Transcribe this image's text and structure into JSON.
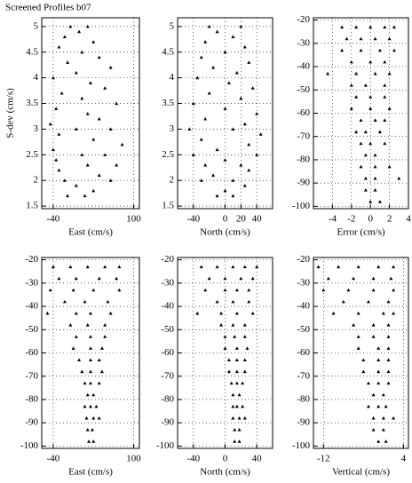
{
  "title": "Screened Profiles b07",
  "chart_data": [
    {
      "type": "scatter",
      "x_label": "East (cm/s)",
      "y_label": "S-dev (cm/s)",
      "color": "#000000",
      "grid": true,
      "xlim": [
        -60,
        110
      ],
      "ylim": [
        1.45,
        5.17
      ],
      "xticks": [
        -40,
        100
      ],
      "yticks": [
        1.5,
        2.0,
        2.5,
        3.0,
        3.5,
        4.0,
        4.5,
        5.0
      ],
      "x": [
        -10,
        20,
        5,
        -20,
        30,
        -30,
        10,
        40,
        -15,
        60,
        0,
        -40,
        25,
        50,
        -25,
        10,
        70,
        -35,
        20,
        40,
        -45,
        0,
        60,
        -30,
        30,
        80,
        -40,
        10,
        50,
        -35,
        20,
        70,
        -30,
        40,
        -20,
        60,
        0,
        30,
        -15,
        15
      ],
      "y": [
        5.0,
        5.0,
        4.9,
        4.8,
        4.7,
        4.6,
        4.5,
        4.4,
        4.3,
        4.2,
        4.1,
        4.0,
        3.9,
        3.8,
        3.7,
        3.6,
        3.5,
        3.4,
        3.3,
        3.2,
        3.1,
        3.0,
        3.0,
        2.9,
        2.8,
        2.7,
        2.6,
        2.5,
        2.5,
        2.4,
        2.3,
        2.3,
        2.2,
        2.1,
        2.0,
        2.0,
        1.9,
        1.8,
        1.7,
        1.7
      ]
    },
    {
      "type": "scatter",
      "x_label": "North (cm/s)",
      "color": "#000000",
      "grid": true,
      "xlim": [
        -60,
        60
      ],
      "ylim": [
        1.45,
        5.17
      ],
      "xticks": [
        -40,
        0,
        20,
        40
      ],
      "yticks": [
        1.5,
        2.0,
        2.5,
        3.0,
        3.5,
        4.0,
        4.5,
        5.0
      ],
      "x": [
        -20,
        20,
        -10,
        10,
        -25,
        25,
        0,
        -30,
        30,
        -15,
        15,
        -35,
        5,
        35,
        -20,
        20,
        -40,
        0,
        40,
        -25,
        25,
        -45,
        10,
        45,
        -30,
        30,
        -10,
        40,
        -40,
        0,
        20,
        -25,
        30,
        -15,
        10,
        -30,
        25,
        0,
        -10,
        10
      ],
      "y": [
        5.0,
        5.0,
        4.9,
        4.8,
        4.7,
        4.6,
        4.5,
        4.4,
        4.3,
        4.2,
        4.1,
        4.0,
        3.9,
        3.8,
        3.7,
        3.6,
        3.5,
        3.4,
        3.3,
        3.2,
        3.1,
        3.0,
        3.0,
        2.9,
        2.8,
        2.7,
        2.6,
        2.5,
        2.5,
        2.4,
        2.3,
        2.3,
        2.2,
        2.1,
        2.0,
        2.0,
        1.9,
        1.8,
        1.7,
        1.7
      ]
    },
    {
      "type": "scatter",
      "x_label": "Error (cm/s)",
      "color": "#000000",
      "grid": true,
      "xlim": [
        -6,
        4
      ],
      "ylim": [
        -101,
        -19
      ],
      "xticks": [
        -4,
        -2,
        0,
        2,
        4
      ],
      "yticks": [
        -100,
        -90,
        -80,
        -70,
        -60,
        -50,
        -40,
        -30,
        -20
      ],
      "x": [
        -3,
        -1.5,
        0,
        1.5,
        2.5,
        -2.5,
        -1,
        0.5,
        2,
        -3,
        -1,
        1,
        2.5,
        -2,
        0,
        1.5,
        -4.5,
        -1.5,
        0.5,
        2,
        -2,
        -0.5,
        1.5,
        -1.5,
        0,
        1.5,
        -2,
        0,
        2,
        -1,
        0.5,
        1.5,
        -1.5,
        -0.5,
        1,
        -1,
        0,
        1.5,
        -0.5,
        0.5,
        -1,
        0.5,
        2,
        -0.5,
        0.5,
        3,
        -0.5,
        0.5,
        0,
        1
      ],
      "y": [
        -23,
        -23,
        -23,
        -23,
        -23,
        -28,
        -28,
        -28,
        -28,
        -33,
        -33,
        -33,
        -33,
        -38,
        -38,
        -38,
        -43,
        -43,
        -43,
        -43,
        -48,
        -48,
        -48,
        -53,
        -53,
        -53,
        -58,
        -58,
        -58,
        -63,
        -63,
        -63,
        -68,
        -68,
        -68,
        -73,
        -73,
        -73,
        -78,
        -78,
        -83,
        -83,
        -83,
        -88,
        -88,
        -88,
        -93,
        -93,
        -98,
        -98
      ]
    },
    {
      "type": "scatter",
      "x_label": "East (cm/s)",
      "color": "#000000",
      "grid": true,
      "xlim": [
        -60,
        110
      ],
      "ylim": [
        -101,
        -19
      ],
      "xticks": [
        -40,
        100
      ],
      "yticks": [
        -100,
        -90,
        -80,
        -70,
        -60,
        -50,
        -40,
        -30,
        -20
      ],
      "x": [
        -40,
        -10,
        20,
        50,
        75,
        -30,
        0,
        40,
        70,
        -45,
        -5,
        30,
        75,
        -20,
        15,
        55,
        -50,
        0,
        25,
        60,
        -10,
        20,
        50,
        0,
        25,
        50,
        -5,
        25,
        45,
        5,
        25,
        40,
        10,
        25,
        45,
        15,
        25,
        40,
        20,
        30,
        15,
        25,
        35,
        18,
        30,
        40,
        20,
        28,
        22,
        30
      ],
      "y": [
        -23,
        -23,
        -23,
        -23,
        -23,
        -28,
        -28,
        -28,
        -28,
        -33,
        -33,
        -33,
        -33,
        -38,
        -38,
        -38,
        -43,
        -43,
        -43,
        -43,
        -48,
        -48,
        -48,
        -53,
        -53,
        -53,
        -58,
        -58,
        -58,
        -63,
        -63,
        -63,
        -68,
        -68,
        -68,
        -73,
        -73,
        -73,
        -78,
        -78,
        -83,
        -83,
        -83,
        -88,
        -88,
        -88,
        -93,
        -93,
        -98,
        -98
      ]
    },
    {
      "type": "scatter",
      "x_label": "North (cm/s)",
      "color": "#000000",
      "grid": true,
      "xlim": [
        -60,
        60
      ],
      "ylim": [
        -101,
        -19
      ],
      "xticks": [
        -40,
        0,
        40
      ],
      "yticks": [
        -100,
        -90,
        -80,
        -70,
        -60,
        -50,
        -40,
        -30,
        -20
      ],
      "x": [
        -30,
        -10,
        10,
        25,
        40,
        -20,
        0,
        20,
        35,
        -25,
        0,
        15,
        30,
        -10,
        10,
        30,
        -35,
        -5,
        15,
        35,
        -5,
        10,
        25,
        0,
        12,
        25,
        0,
        15,
        28,
        5,
        15,
        25,
        5,
        15,
        25,
        8,
        15,
        22,
        10,
        18,
        10,
        15,
        22,
        10,
        18,
        25,
        12,
        18,
        12,
        18
      ],
      "y": [
        -23,
        -23,
        -23,
        -23,
        -23,
        -28,
        -28,
        -28,
        -28,
        -33,
        -33,
        -33,
        -33,
        -38,
        -38,
        -38,
        -43,
        -43,
        -43,
        -43,
        -48,
        -48,
        -48,
        -53,
        -53,
        -53,
        -58,
        -58,
        -58,
        -63,
        -63,
        -63,
        -68,
        -68,
        -68,
        -73,
        -73,
        -73,
        -78,
        -78,
        -83,
        -83,
        -83,
        -88,
        -88,
        -88,
        -93,
        -93,
        -98,
        -98
      ]
    },
    {
      "type": "scatter",
      "x_label": "Vertical (cm/s)",
      "color": "#000000",
      "grid": true,
      "xlim": [
        -14,
        5
      ],
      "ylim": [
        -101,
        -19
      ],
      "xticks": [
        -12,
        4
      ],
      "yticks": [
        -100,
        -90,
        -80,
        -70,
        -60,
        -50,
        -40,
        -30,
        -20
      ],
      "x": [
        -13,
        -9,
        -5,
        -1,
        2,
        -11,
        -6,
        -2,
        1.5,
        -12,
        -7,
        -2,
        2,
        -8,
        -3,
        1,
        -10,
        -5,
        0,
        2,
        -6,
        -2,
        1,
        -5,
        -2,
        1,
        -5,
        -1,
        1,
        -4,
        -1,
        1,
        -4,
        -1,
        1,
        -3,
        -1,
        1,
        -2,
        0,
        -3,
        -1,
        0.5,
        -2,
        0,
        2,
        -2,
        0,
        -1,
        0.5
      ],
      "y": [
        -23,
        -23,
        -23,
        -23,
        -23,
        -28,
        -28,
        -28,
        -28,
        -33,
        -33,
        -33,
        -33,
        -38,
        -38,
        -38,
        -43,
        -43,
        -43,
        -43,
        -48,
        -48,
        -48,
        -53,
        -53,
        -53,
        -58,
        -58,
        -58,
        -63,
        -63,
        -63,
        -68,
        -68,
        -68,
        -73,
        -73,
        -73,
        -78,
        -78,
        -83,
        -83,
        -83,
        -88,
        -88,
        -88,
        -93,
        -93,
        -98,
        -98
      ]
    }
  ]
}
